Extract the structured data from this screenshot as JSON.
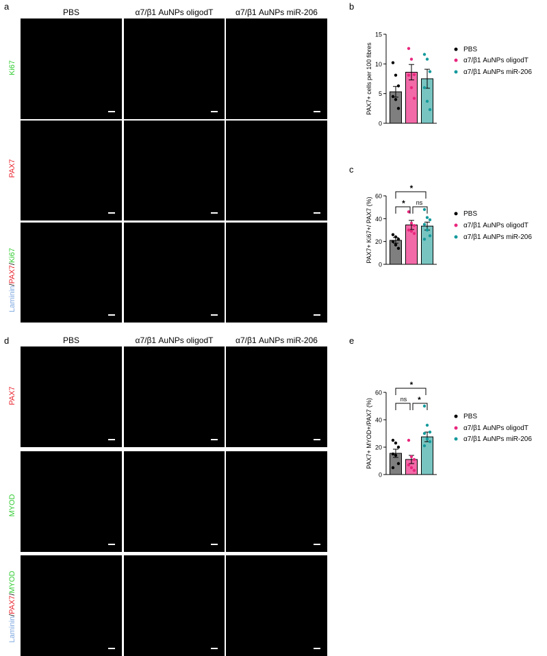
{
  "panel_letters": {
    "a": "a",
    "b": "b",
    "c": "c",
    "d": "d",
    "e": "e"
  },
  "columns": [
    "PBS",
    "α7/β1 AuNPs oligodT",
    "α7/β1 AuNPs miR-206"
  ],
  "rows_a": {
    "ki67": "Ki67",
    "pax7": "PAX7",
    "merge": {
      "laminin": "Laminin",
      "sep1": "/",
      "pax7": "PAX7",
      "sep2": "/",
      "ki67": "Ki67"
    }
  },
  "rows_d": {
    "pax7": "PAX7",
    "myod": "MYOD",
    "merge": {
      "laminin": "Laminin",
      "sep1": "/",
      "pax7": "PAX7",
      "sep2": "/",
      "myod": "MYOD"
    }
  },
  "legend": [
    {
      "label": "PBS",
      "color": "#000000"
    },
    {
      "label": "α7/β1 AuNPs oligodT",
      "color": "#e8277e"
    },
    {
      "label": "α7/β1 AuNPs miR-206",
      "color": "#159a9c"
    }
  ],
  "bar_fills": [
    "#7f7f7f",
    "#f36aa8",
    "#78c4c1"
  ],
  "chart_data": [
    {
      "id": "b",
      "type": "bar",
      "ylabel": "PAX7+ cells per 100 fibres",
      "ylim": [
        0,
        15
      ],
      "yticks": [
        0,
        5,
        10,
        15
      ],
      "categories": [
        "PBS",
        "α7/β1 AuNPs oligodT",
        "α7/β1 AuNPs miR-206"
      ],
      "values": [
        5.3,
        8.6,
        7.5
      ],
      "errors": [
        0.9,
        1.3,
        1.6
      ],
      "points": [
        [
          10.2,
          8.1,
          6.3,
          4.5,
          4.0,
          2.5
        ],
        [
          12.6,
          10.8,
          8.2,
          8.1,
          6.0,
          4.2
        ],
        [
          11.6,
          10.8,
          8.7,
          6.0,
          3.7,
          2.3
        ]
      ],
      "significance": []
    },
    {
      "id": "c",
      "type": "bar",
      "ylabel": "PAX7+ Ki67+/ PAX7 (%)",
      "ylim": [
        0,
        60
      ],
      "yticks": [
        0,
        20,
        40,
        60
      ],
      "categories": [
        "PBS",
        "α7/β1 AuNPs oligodT",
        "α7/β1 AuNPs miR-206"
      ],
      "values": [
        21,
        34.5,
        33.5
      ],
      "errors": [
        2.5,
        4.0,
        3.5
      ],
      "points": [
        [
          26,
          24,
          22,
          20,
          17,
          14
        ],
        [
          46,
          36,
          34,
          30,
          29,
          27
        ],
        [
          48,
          41,
          39,
          35,
          30,
          25,
          22
        ]
      ],
      "significance": [
        {
          "from": 0,
          "to": 2,
          "label": "*"
        },
        {
          "from": 0,
          "to": 1,
          "label": "*"
        },
        {
          "from": 1,
          "to": 2,
          "label": "ns"
        }
      ]
    },
    {
      "id": "e",
      "type": "bar",
      "ylabel": "PAX7+ MYOD+/PAX7 (%)",
      "ylim": [
        0,
        60
      ],
      "yticks": [
        0,
        20,
        40,
        60
      ],
      "categories": [
        "PBS",
        "α7/β1 AuNPs oligodT",
        "α7/β1 AuNPs miR-206"
      ],
      "values": [
        15.5,
        11.0,
        27.5
      ],
      "errors": [
        3.0,
        3.0,
        3.5
      ],
      "points": [
        [
          25,
          23,
          20,
          15,
          14,
          8,
          5
        ],
        [
          25,
          13,
          11,
          7,
          5,
          3
        ],
        [
          50,
          36,
          31,
          30,
          26,
          24,
          21
        ]
      ],
      "significance": [
        {
          "from": 0,
          "to": 2,
          "label": "*"
        },
        {
          "from": 0,
          "to": 1,
          "label": "ns"
        },
        {
          "from": 1,
          "to": 2,
          "label": "*"
        }
      ]
    }
  ]
}
